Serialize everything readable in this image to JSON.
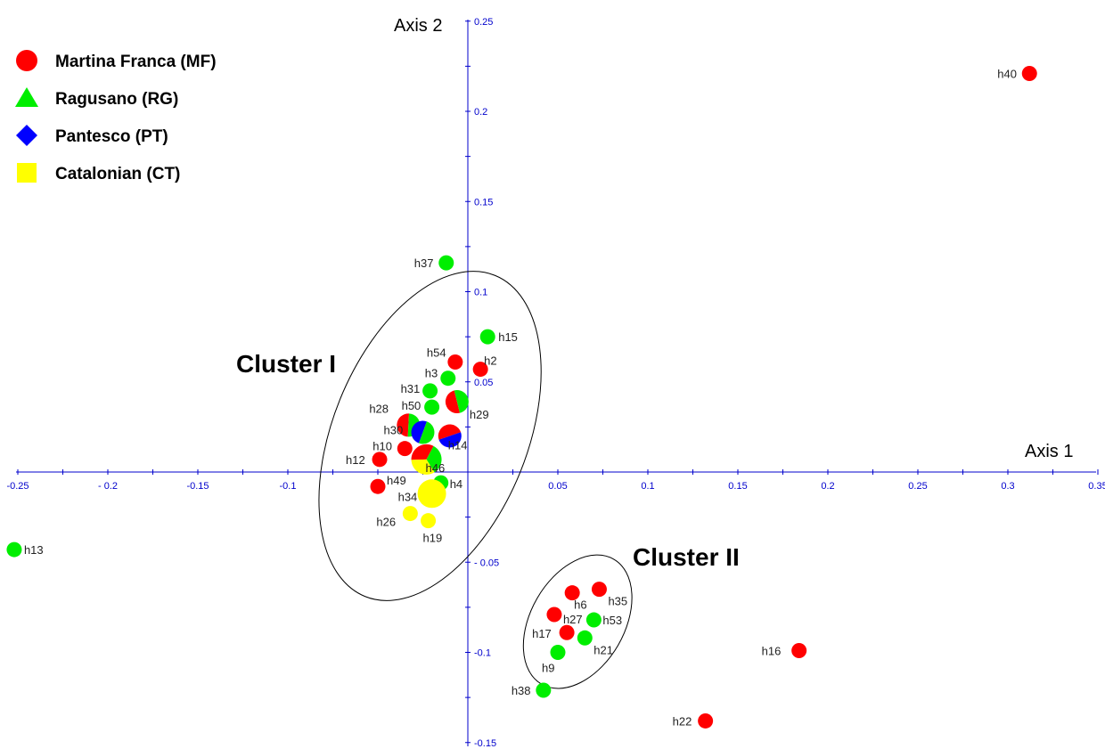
{
  "chart_data": {
    "type": "scatter",
    "title": "",
    "xlabel": "Axis 1",
    "ylabel": "Axis 2",
    "xlim": [
      -0.25,
      0.35
    ],
    "ylim": [
      -0.15,
      0.25
    ],
    "grid": false,
    "legend_position": "top-left",
    "x_ticks": [
      {
        "value": -0.25,
        "label": "-0.25"
      },
      {
        "value": -0.2,
        "label": "- 0.2"
      },
      {
        "value": -0.15,
        "label": "-0.15"
      },
      {
        "value": -0.1,
        "label": "-0.1"
      },
      {
        "value": 0.05,
        "label": "0.05"
      },
      {
        "value": 0.1,
        "label": "0.1"
      },
      {
        "value": 0.15,
        "label": "0.15"
      },
      {
        "value": 0.2,
        "label": "0.2"
      },
      {
        "value": 0.25,
        "label": "0.25"
      },
      {
        "value": 0.3,
        "label": "0.3"
      },
      {
        "value": 0.35,
        "label": "0.35"
      }
    ],
    "y_ticks": [
      {
        "value": 0.25,
        "label": "0.25"
      },
      {
        "value": 0.2,
        "label": "0.2"
      },
      {
        "value": 0.15,
        "label": "0.15"
      },
      {
        "value": 0.1,
        "label": "0.1"
      },
      {
        "value": 0.05,
        "label": "0.05"
      },
      {
        "value": -0.05,
        "label": "- 0.05"
      },
      {
        "value": -0.1,
        "label": "-0.1"
      },
      {
        "value": -0.15,
        "label": "-0.15"
      }
    ],
    "legend": [
      {
        "label": "Martina Franca (MF)",
        "shape": "circle",
        "color": "#ff0000"
      },
      {
        "label": "Ragusano (RG)",
        "shape": "triangle",
        "color": "#00ee00"
      },
      {
        "label": "Pantesco (PT)",
        "shape": "diamond",
        "color": "#0000ff"
      },
      {
        "label": "Catalonian (CT)",
        "shape": "square",
        "color": "#ffff00"
      }
    ],
    "colors": {
      "MF": "#ff0000",
      "RG": "#00ee00",
      "PT": "#0000ff",
      "CT": "#ffff00"
    },
    "points": [
      {
        "label": "h40",
        "x": 0.312,
        "y": 0.221,
        "breed": "MF"
      },
      {
        "label": "h37",
        "x": -0.012,
        "y": 0.116,
        "breed": "RG"
      },
      {
        "label": "h15",
        "x": 0.011,
        "y": 0.075,
        "breed": "RG"
      },
      {
        "label": "h54",
        "x": -0.007,
        "y": 0.061,
        "breed": "MF"
      },
      {
        "label": "h2",
        "x": 0.007,
        "y": 0.057,
        "breed": "MF"
      },
      {
        "label": "h3",
        "x": -0.011,
        "y": 0.052,
        "breed": "RG"
      },
      {
        "label": "h31",
        "x": -0.021,
        "y": 0.045,
        "breed": "RG"
      },
      {
        "label": "h50",
        "x": -0.02,
        "y": 0.036,
        "breed": "RG"
      },
      {
        "label": "h29",
        "x": -0.006,
        "y": 0.039,
        "breed": "MF-RG"
      },
      {
        "label": "h28",
        "x": -0.033,
        "y": 0.026,
        "breed": "MF-RG"
      },
      {
        "label": "h30",
        "x": -0.025,
        "y": 0.022,
        "breed": "PT-RG"
      },
      {
        "label": "h10",
        "x": -0.035,
        "y": 0.013,
        "breed": "MF"
      },
      {
        "label": "h12",
        "x": -0.049,
        "y": 0.007,
        "breed": "MF"
      },
      {
        "label": "h14",
        "x": -0.01,
        "y": 0.02,
        "breed": "MF-PT"
      },
      {
        "label": "h46",
        "x": -0.023,
        "y": 0.007,
        "breed": "MF-RG-CT"
      },
      {
        "label": "h49",
        "x": -0.05,
        "y": -0.008,
        "breed": "MF"
      },
      {
        "label": "h4",
        "x": -0.015,
        "y": -0.006,
        "breed": "RG"
      },
      {
        "label": "h34",
        "x": -0.02,
        "y": -0.012,
        "breed": "CT"
      },
      {
        "label": "h26",
        "x": -0.032,
        "y": -0.023,
        "breed": "CT"
      },
      {
        "label": "h19",
        "x": -0.022,
        "y": -0.027,
        "breed": "CT"
      },
      {
        "label": "h13",
        "x": -0.252,
        "y": -0.043,
        "breed": "RG"
      },
      {
        "label": "h6",
        "x": 0.058,
        "y": -0.067,
        "breed": "MF"
      },
      {
        "label": "h35",
        "x": 0.073,
        "y": -0.065,
        "breed": "MF"
      },
      {
        "label": "h27",
        "x": 0.048,
        "y": -0.079,
        "breed": "MF"
      },
      {
        "label": "h53",
        "x": 0.07,
        "y": -0.082,
        "breed": "RG"
      },
      {
        "label": "h17",
        "x": 0.055,
        "y": -0.089,
        "breed": "MF"
      },
      {
        "label": "h21",
        "x": 0.065,
        "y": -0.092,
        "breed": "RG"
      },
      {
        "label": "h9",
        "x": 0.05,
        "y": -0.1,
        "breed": "RG"
      },
      {
        "label": "h38",
        "x": 0.042,
        "y": -0.121,
        "breed": "RG"
      },
      {
        "label": "h16",
        "x": 0.184,
        "y": -0.099,
        "breed": "MF"
      },
      {
        "label": "h22",
        "x": 0.132,
        "y": -0.138,
        "breed": "MF"
      }
    ],
    "clusters": [
      {
        "label": "Cluster I",
        "cx": -0.021,
        "cy": 0.02,
        "rx": 0.054,
        "ry": 0.096,
        "rotate": 22
      },
      {
        "label": "Cluster II",
        "cx": 0.061,
        "cy": -0.083,
        "rx": 0.026,
        "ry": 0.04,
        "rotate": 30
      }
    ]
  }
}
